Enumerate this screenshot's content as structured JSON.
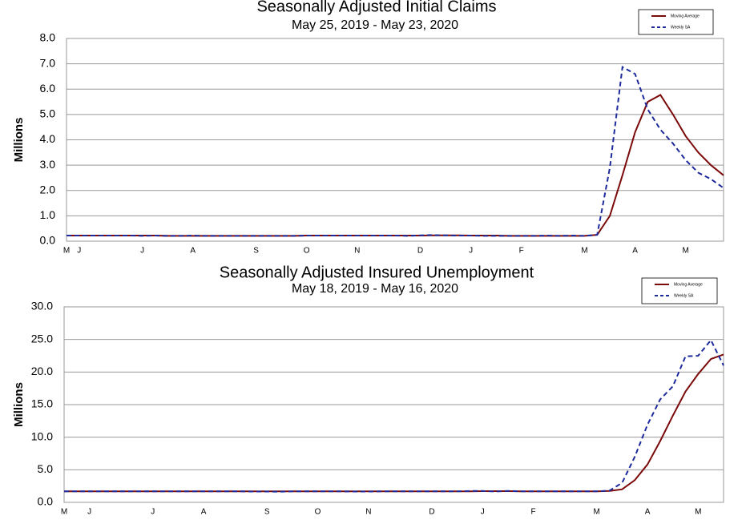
{
  "chart_data": [
    {
      "type": "line",
      "title": "Seasonally Adjusted Initial Claims",
      "subtitle": "May 25, 2019 - May 23, 2020",
      "y_label": "Millions",
      "categories": [
        "M",
        "J",
        null,
        null,
        null,
        null,
        "J",
        null,
        null,
        null,
        "A",
        null,
        null,
        null,
        null,
        "S",
        null,
        null,
        null,
        "O",
        null,
        null,
        null,
        "N",
        null,
        null,
        null,
        null,
        "D",
        null,
        null,
        null,
        "J",
        null,
        null,
        null,
        "F",
        null,
        null,
        null,
        null,
        "M",
        null,
        null,
        null,
        "A",
        null,
        null,
        null,
        "M",
        null,
        null,
        null
      ],
      "ylim": [
        0,
        8
      ],
      "yticks": [
        {
          "value": 0,
          "label": "0.0"
        },
        {
          "value": 1,
          "label": "1.0"
        },
        {
          "value": 2,
          "label": "2.0"
        },
        {
          "value": 3,
          "label": "3.0"
        },
        {
          "value": 4,
          "label": "4.0"
        },
        {
          "value": 5,
          "label": "5.0"
        },
        {
          "value": 6,
          "label": "6.0"
        },
        {
          "value": 7,
          "label": "7.0"
        },
        {
          "value": 8,
          "label": "8.0"
        }
      ],
      "grid": true,
      "legend": "upper right",
      "series": [
        {
          "name": "Moving Average",
          "color": "#7b0a0a",
          "dash": false,
          "values": [
            0.22,
            0.22,
            0.22,
            0.22,
            0.22,
            0.22,
            0.22,
            0.22,
            0.21,
            0.21,
            0.21,
            0.21,
            0.21,
            0.21,
            0.21,
            0.21,
            0.21,
            0.21,
            0.21,
            0.22,
            0.22,
            0.22,
            0.22,
            0.22,
            0.22,
            0.22,
            0.22,
            0.22,
            0.22,
            0.23,
            0.23,
            0.23,
            0.22,
            0.22,
            0.22,
            0.21,
            0.21,
            0.21,
            0.21,
            0.21,
            0.21,
            0.21,
            0.25,
            1.0,
            2.6,
            4.3,
            5.5,
            5.77,
            5.0,
            4.15,
            3.5,
            3.0,
            2.6
          ]
        },
        {
          "name": "Weekly SA",
          "color": "#1c2a9c",
          "dash": true,
          "values": [
            0.22,
            0.22,
            0.22,
            0.22,
            0.22,
            0.22,
            0.21,
            0.22,
            0.21,
            0.21,
            0.22,
            0.21,
            0.21,
            0.21,
            0.21,
            0.21,
            0.21,
            0.21,
            0.21,
            0.22,
            0.22,
            0.22,
            0.22,
            0.22,
            0.22,
            0.22,
            0.22,
            0.21,
            0.23,
            0.24,
            0.23,
            0.22,
            0.22,
            0.21,
            0.21,
            0.21,
            0.21,
            0.21,
            0.22,
            0.21,
            0.22,
            0.21,
            0.25,
            2.9,
            6.87,
            6.6,
            5.2,
            4.4,
            3.85,
            3.2,
            2.7,
            2.45,
            2.1
          ]
        }
      ]
    },
    {
      "type": "line",
      "title": "Seasonally Adjusted Insured Unemployment",
      "subtitle": "May 18, 2019 - May 16, 2020",
      "y_label": "Millions",
      "categories": [
        "M",
        null,
        "J",
        null,
        null,
        null,
        null,
        "J",
        null,
        null,
        null,
        "A",
        null,
        null,
        null,
        null,
        "S",
        null,
        null,
        null,
        "O",
        null,
        null,
        null,
        "N",
        null,
        null,
        null,
        null,
        "D",
        null,
        null,
        null,
        "J",
        null,
        null,
        null,
        "F",
        null,
        null,
        null,
        null,
        "M",
        null,
        null,
        null,
        "A",
        null,
        null,
        null,
        "M",
        null,
        null
      ],
      "ylim": [
        0,
        30
      ],
      "yticks": [
        {
          "value": 0,
          "label": "0.0"
        },
        {
          "value": 5,
          "label": "5.0"
        },
        {
          "value": 10,
          "label": "10.0"
        },
        {
          "value": 15,
          "label": "15.0"
        },
        {
          "value": 20,
          "label": "20.0"
        },
        {
          "value": 25,
          "label": "25.0"
        },
        {
          "value": 30,
          "label": "30.0"
        }
      ],
      "grid": true,
      "legend": "upper right",
      "series": [
        {
          "name": "Moving Average",
          "color": "#7b0a0a",
          "dash": false,
          "values": [
            1.68,
            1.68,
            1.68,
            1.68,
            1.68,
            1.68,
            1.68,
            1.68,
            1.68,
            1.68,
            1.68,
            1.68,
            1.68,
            1.68,
            1.68,
            1.68,
            1.68,
            1.68,
            1.68,
            1.68,
            1.68,
            1.68,
            1.68,
            1.68,
            1.68,
            1.68,
            1.68,
            1.68,
            1.68,
            1.68,
            1.68,
            1.68,
            1.7,
            1.72,
            1.72,
            1.72,
            1.7,
            1.7,
            1.7,
            1.7,
            1.7,
            1.7,
            1.7,
            1.75,
            2.0,
            3.4,
            5.8,
            9.4,
            13.3,
            17.0,
            19.7,
            22.0,
            22.7
          ]
        },
        {
          "name": "Weekly SA",
          "color": "#1c2a9c",
          "dash": true,
          "values": [
            1.68,
            1.68,
            1.68,
            1.68,
            1.68,
            1.68,
            1.68,
            1.68,
            1.68,
            1.68,
            1.68,
            1.68,
            1.68,
            1.68,
            1.68,
            1.66,
            1.66,
            1.64,
            1.68,
            1.68,
            1.68,
            1.68,
            1.68,
            1.66,
            1.66,
            1.68,
            1.68,
            1.68,
            1.68,
            1.68,
            1.68,
            1.7,
            1.74,
            1.74,
            1.66,
            1.76,
            1.7,
            1.7,
            1.7,
            1.7,
            1.7,
            1.7,
            1.7,
            1.8,
            3.0,
            7.0,
            11.9,
            15.8,
            17.8,
            22.4,
            22.5,
            24.9,
            21.0
          ]
        }
      ]
    }
  ]
}
